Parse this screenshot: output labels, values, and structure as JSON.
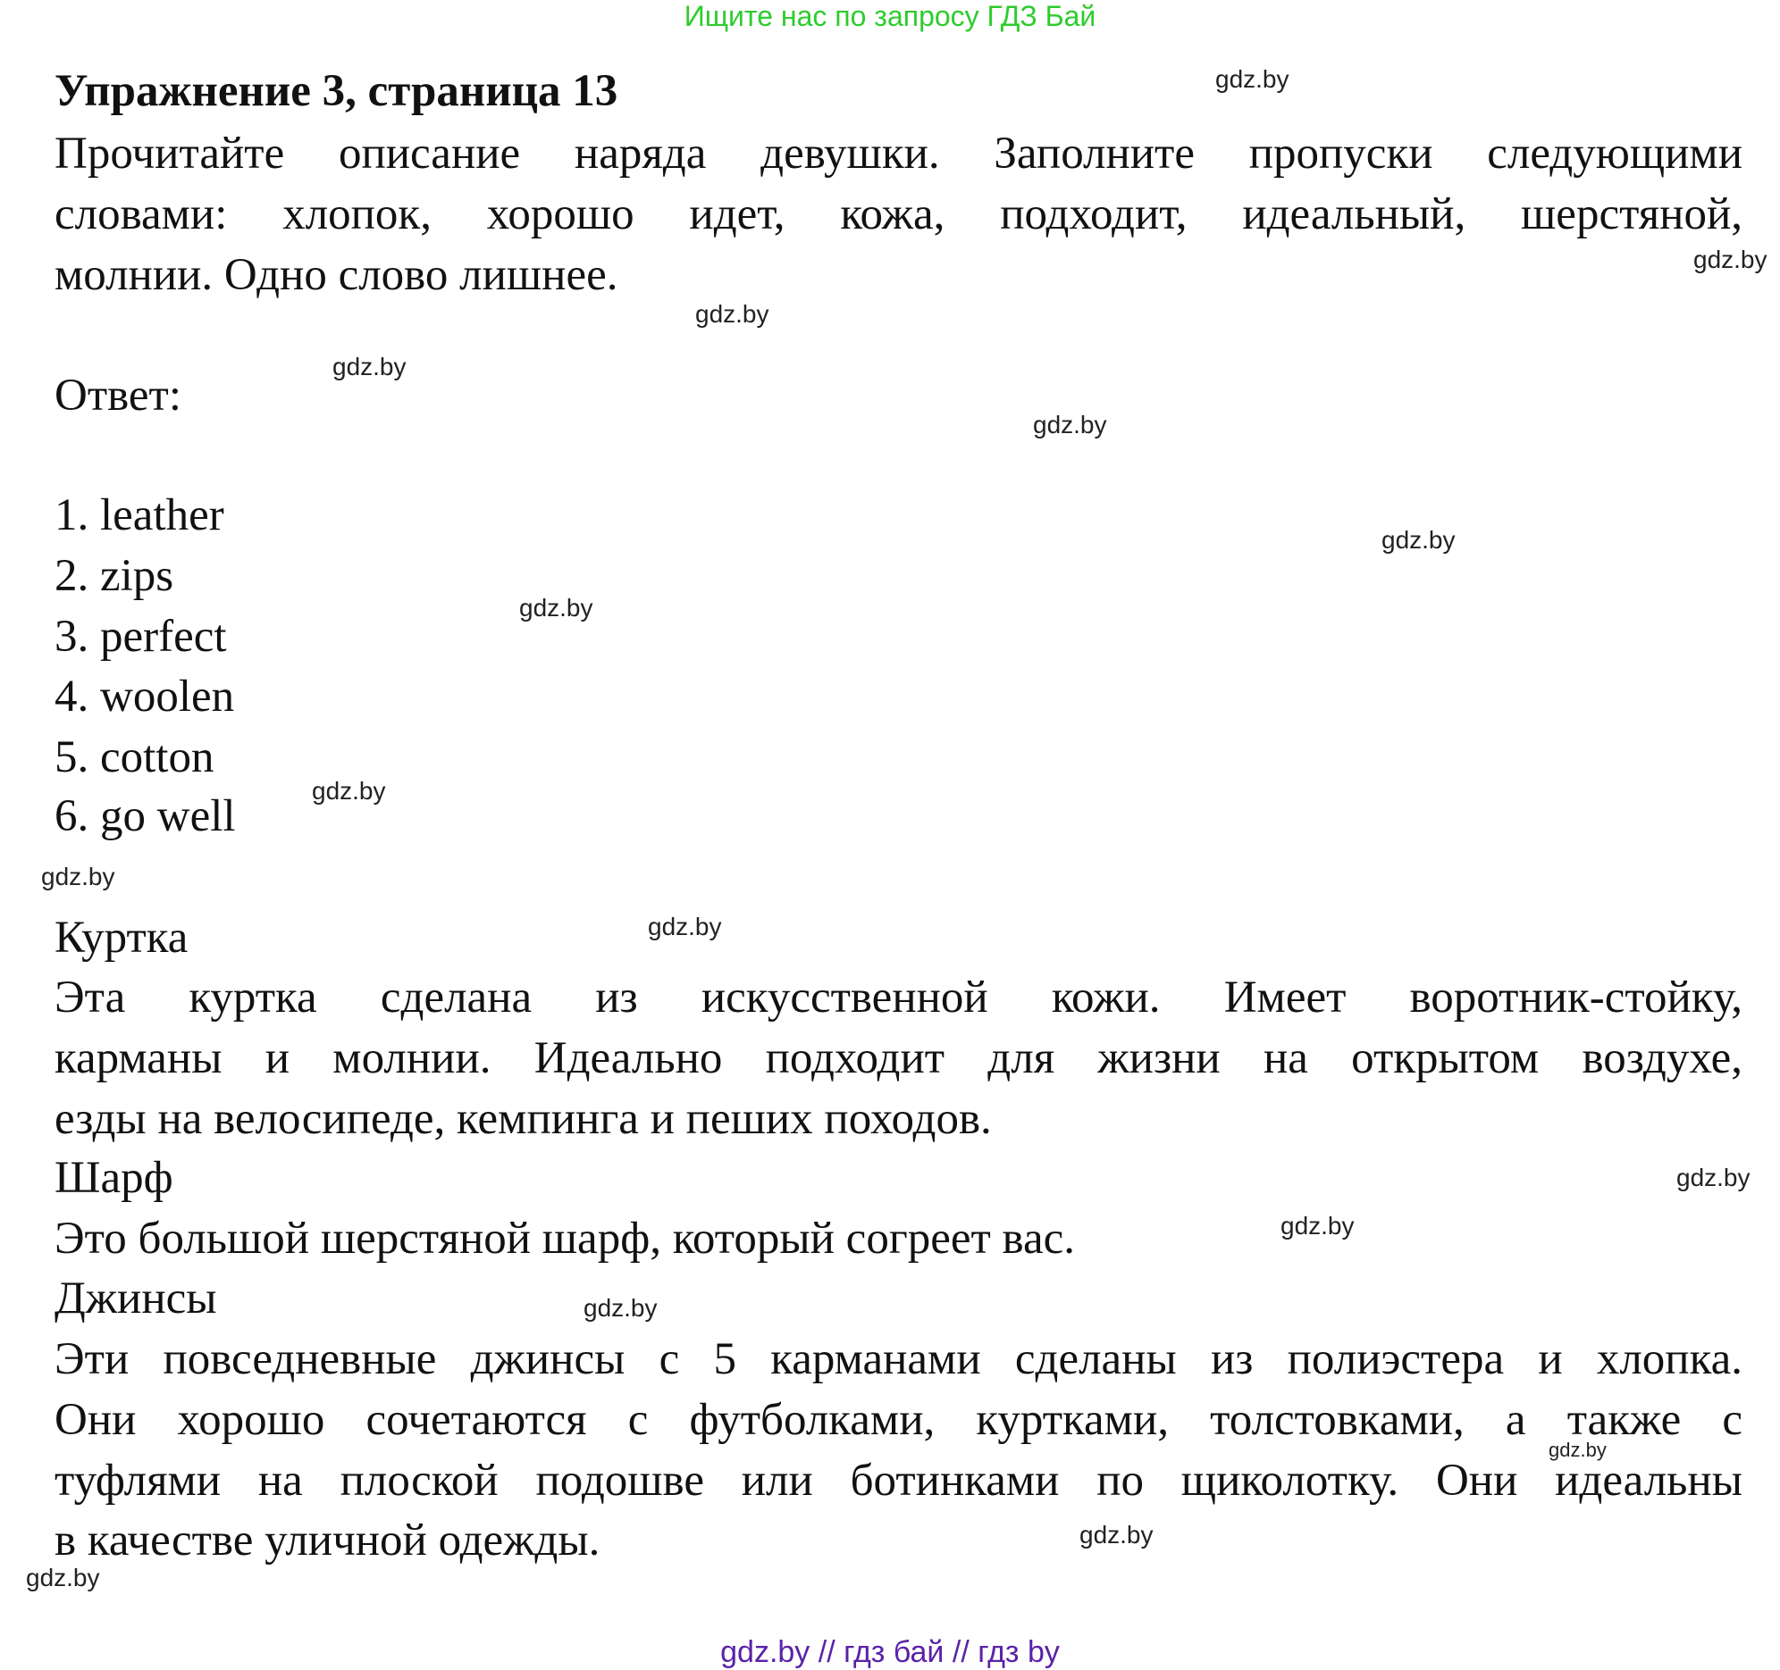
{
  "top_banner": "Ищите нас по запросу ГДЗ Бай",
  "title": "Упражнение 3, страница 13",
  "instructions": [
    "Прочитайте описание наряда девушки. Заполните пропуски следующими",
    "словами: хлопок, хорошо идет, кожа, подходит, идеальный, шерстяной,",
    "молнии. Одно слово лишнее."
  ],
  "answer_label": "Ответ:",
  "answers": [
    "1. leather",
    "2. zips",
    "3. perfect",
    "4. woolen",
    "5. cotton",
    "6. go well"
  ],
  "sections": [
    {
      "heading": "Куртка",
      "lines": [
        "Эта куртка сделана из искусственной кожи. Имеет воротник-стойку,",
        "карманы и молнии. Идеально подходит для жизни на открытом воздухе,",
        "езды на велосипеде, кемпинга и пеших походов."
      ]
    },
    {
      "heading": "Шарф",
      "lines": [
        "Это большой шерстяной шарф, который согреет вас."
      ]
    },
    {
      "heading": "Джинсы",
      "lines": [
        "Эти повседневные джинсы с 5 карманами сделаны из полиэстера и хлопка.",
        "Они хорошо сочетаются с футболками, куртками, толстовками, а также с",
        "туфлями на плоской подошве или ботинками по щиколотку. Они идеальны",
        "в качестве уличной одежды."
      ]
    }
  ],
  "watermark": "gdz.by",
  "bottom_links": "gdz.by  //  гдз бай  //  гдз by",
  "colors": {
    "banner": "#2ecc2e",
    "bottom_links": "#5a22a8",
    "text": "#111111"
  }
}
